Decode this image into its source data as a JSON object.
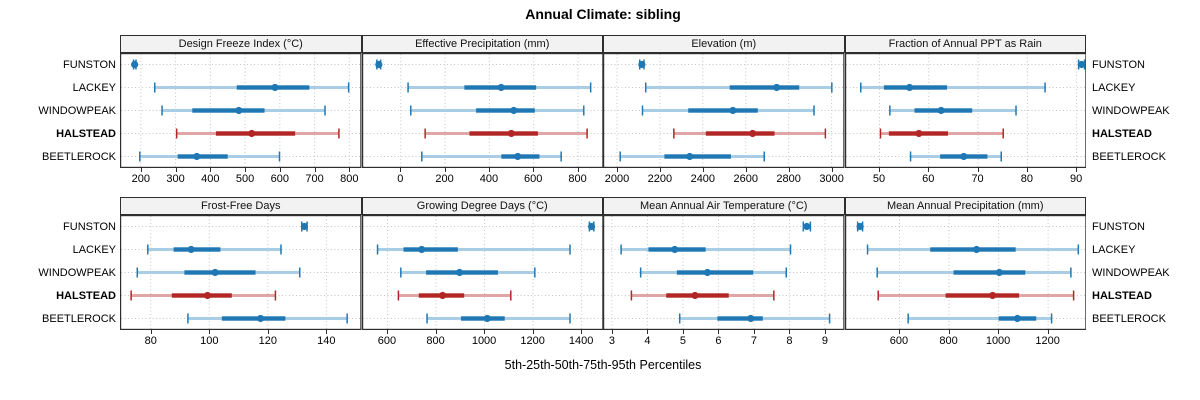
{
  "title": "Annual Climate: sibling",
  "xlabel": "5th-25th-50th-75th-95th Percentiles",
  "stations": [
    "FUNSTON",
    "LACKEY",
    "WINDOWPEAK",
    "HALSTEAD",
    "BEETLEROCK"
  ],
  "highlight_station": "HALSTEAD",
  "percentiles": [
    5,
    25,
    50,
    75,
    95
  ],
  "colors": {
    "series_main": "#1f77b4",
    "series_light": "#a9cde4",
    "highlight_main": "#b22626",
    "highlight_light": "#e0a6a6",
    "strip_bg": "#f2f2f2",
    "panel_border": "#2e2e2e",
    "grid": "#c6c6c6"
  },
  "chart_data": [
    {
      "type": "dotplot-percentiles",
      "id": "design-freeze-index",
      "title": "Design Freeze Index (°C)",
      "xlim": [
        140,
        835
      ],
      "ticks": [
        200,
        300,
        400,
        500,
        600,
        700,
        800
      ],
      "series": [
        {
          "station": "FUNSTON",
          "values": [
            179,
            180,
            182,
            184,
            186
          ]
        },
        {
          "station": "LACKEY",
          "values": [
            240,
            476,
            586,
            685,
            798
          ]
        },
        {
          "station": "WINDOWPEAK",
          "values": [
            261,
            348,
            482,
            556,
            730
          ]
        },
        {
          "station": "HALSTEAD",
          "values": [
            303,
            416,
            519,
            644,
            770
          ]
        },
        {
          "station": "BEETLEROCK",
          "values": [
            197,
            306,
            361,
            450,
            599
          ]
        }
      ]
    },
    {
      "type": "dotplot-percentiles",
      "id": "effective-precipitation",
      "title": "Effective Precipitation (mm)",
      "xlim": [
        -175,
        915
      ],
      "ticks": [
        0,
        200,
        400,
        600,
        800
      ],
      "series": [
        {
          "station": "FUNSTON",
          "values": [
            -108,
            -104,
            -99,
            -95,
            -91
          ]
        },
        {
          "station": "LACKEY",
          "values": [
            33,
            287,
            453,
            611,
            857
          ]
        },
        {
          "station": "WINDOWPEAK",
          "values": [
            45,
            340,
            510,
            605,
            826
          ]
        },
        {
          "station": "HALSTEAD",
          "values": [
            110,
            310,
            499,
            619,
            841
          ]
        },
        {
          "station": "BEETLEROCK",
          "values": [
            95,
            454,
            528,
            626,
            724
          ]
        }
      ]
    },
    {
      "type": "dotplot-percentiles",
      "id": "elevation",
      "title": "Elevation (m)",
      "xlim": [
        1935,
        3060
      ],
      "ticks": [
        2000,
        2200,
        2400,
        2600,
        2800,
        3000
      ],
      "series": [
        {
          "station": "FUNSTON",
          "values": [
            2106,
            2111,
            2116,
            2121,
            2126
          ]
        },
        {
          "station": "LACKEY",
          "values": [
            2134,
            2525,
            2744,
            2849,
            3001
          ]
        },
        {
          "station": "WINDOWPEAK",
          "values": [
            2119,
            2332,
            2540,
            2656,
            2918
          ]
        },
        {
          "station": "HALSTEAD",
          "values": [
            2265,
            2414,
            2632,
            2734,
            2971
          ]
        },
        {
          "station": "BEETLEROCK",
          "values": [
            2015,
            2221,
            2339,
            2531,
            2686
          ]
        }
      ]
    },
    {
      "type": "dotplot-percentiles",
      "id": "fraction-annual-ppt-as-rain",
      "title": "Fraction of Annual PPT as Rain",
      "xlim": [
        43,
        92
      ],
      "ticks": [
        50,
        60,
        70,
        80,
        90
      ],
      "series": [
        {
          "station": "FUNSTON",
          "values": [
            90.4,
            90.7,
            91,
            91.3,
            91.6
          ]
        },
        {
          "station": "LACKEY",
          "values": [
            46.2,
            50.9,
            56.1,
            63.7,
            83.6
          ]
        },
        {
          "station": "WINDOWPEAK",
          "values": [
            52.1,
            57.1,
            62.5,
            68.8,
            77.7
          ]
        },
        {
          "station": "HALSTEAD",
          "values": [
            50.2,
            51.9,
            58,
            63.9,
            75.1
          ]
        },
        {
          "station": "BEETLEROCK",
          "values": [
            56.3,
            62.3,
            67.1,
            71.9,
            74.7
          ]
        }
      ]
    },
    {
      "type": "dotplot-percentiles",
      "id": "frost-free-days",
      "title": "Frost-Free Days",
      "xlim": [
        69.5,
        152
      ],
      "ticks": [
        80,
        100,
        120,
        140
      ],
      "series": [
        {
          "station": "FUNSTON",
          "values": [
            131.6,
            132,
            132.5,
            133,
            133.4
          ]
        },
        {
          "station": "LACKEY",
          "values": [
            79,
            87.8,
            93.8,
            103.8,
            124.5
          ]
        },
        {
          "station": "WINDOWPEAK",
          "values": [
            75.4,
            91.5,
            102,
            115.8,
            130.9
          ]
        },
        {
          "station": "HALSTEAD",
          "values": [
            73.3,
            87.2,
            99.4,
            107.7,
            122.6
          ]
        },
        {
          "station": "BEETLEROCK",
          "values": [
            92.7,
            104.3,
            117.5,
            126,
            147.1
          ]
        }
      ]
    },
    {
      "type": "dotplot-percentiles",
      "id": "growing-degree-days",
      "title": "Growing Degree Days (°C)",
      "xlim": [
        495,
        1490
      ],
      "ticks": [
        600,
        800,
        1000,
        1200,
        1400
      ],
      "series": [
        {
          "station": "FUNSTON",
          "values": [
            1432,
            1436,
            1441,
            1446,
            1450
          ]
        },
        {
          "station": "LACKEY",
          "values": [
            559,
            666,
            741,
            890,
            1352
          ]
        },
        {
          "station": "WINDOWPEAK",
          "values": [
            655,
            759,
            897,
            1055,
            1207
          ]
        },
        {
          "station": "HALSTEAD",
          "values": [
            645,
            729,
            827,
            916,
            1108
          ]
        },
        {
          "station": "BEETLEROCK",
          "values": [
            763,
            903,
            1011,
            1083,
            1352
          ]
        }
      ]
    },
    {
      "type": "dotplot-percentiles",
      "id": "mean-annual-air-temperature",
      "title": "Mean Annual Air Temperature (°C)",
      "xlim": [
        2.75,
        9.55
      ],
      "ticks": [
        3,
        4,
        5,
        6,
        7,
        8,
        9
      ],
      "series": [
        {
          "station": "FUNSTON",
          "values": [
            8.39,
            8.44,
            8.49,
            8.54,
            8.59
          ]
        },
        {
          "station": "LACKEY",
          "values": [
            3.26,
            4.03,
            4.77,
            5.64,
            8.03
          ]
        },
        {
          "station": "WINDOWPEAK",
          "values": [
            3.81,
            4.83,
            5.69,
            6.98,
            7.91
          ]
        },
        {
          "station": "HALSTEAD",
          "values": [
            3.55,
            4.53,
            5.34,
            6.29,
            7.56
          ]
        },
        {
          "station": "BEETLEROCK",
          "values": [
            4.91,
            5.97,
            6.91,
            7.25,
            9.13
          ]
        }
      ]
    },
    {
      "type": "dotplot-percentiles",
      "id": "mean-annual-precipitation",
      "title": "Mean Annual Precipitation (mm)",
      "xlim": [
        380,
        1355
      ],
      "ticks": [
        600,
        800,
        1000,
        1200
      ],
      "series": [
        {
          "station": "FUNSTON",
          "values": [
            431,
            436,
            441,
            446,
            451
          ]
        },
        {
          "station": "LACKEY",
          "values": [
            471,
            724,
            911,
            1069,
            1322
          ]
        },
        {
          "station": "WINDOWPEAK",
          "values": [
            510,
            818,
            1003,
            1108,
            1292
          ]
        },
        {
          "station": "HALSTEAD",
          "values": [
            514,
            786,
            976,
            1083,
            1303
          ]
        },
        {
          "station": "BEETLEROCK",
          "values": [
            635,
            1000,
            1076,
            1152,
            1214
          ]
        }
      ]
    }
  ]
}
